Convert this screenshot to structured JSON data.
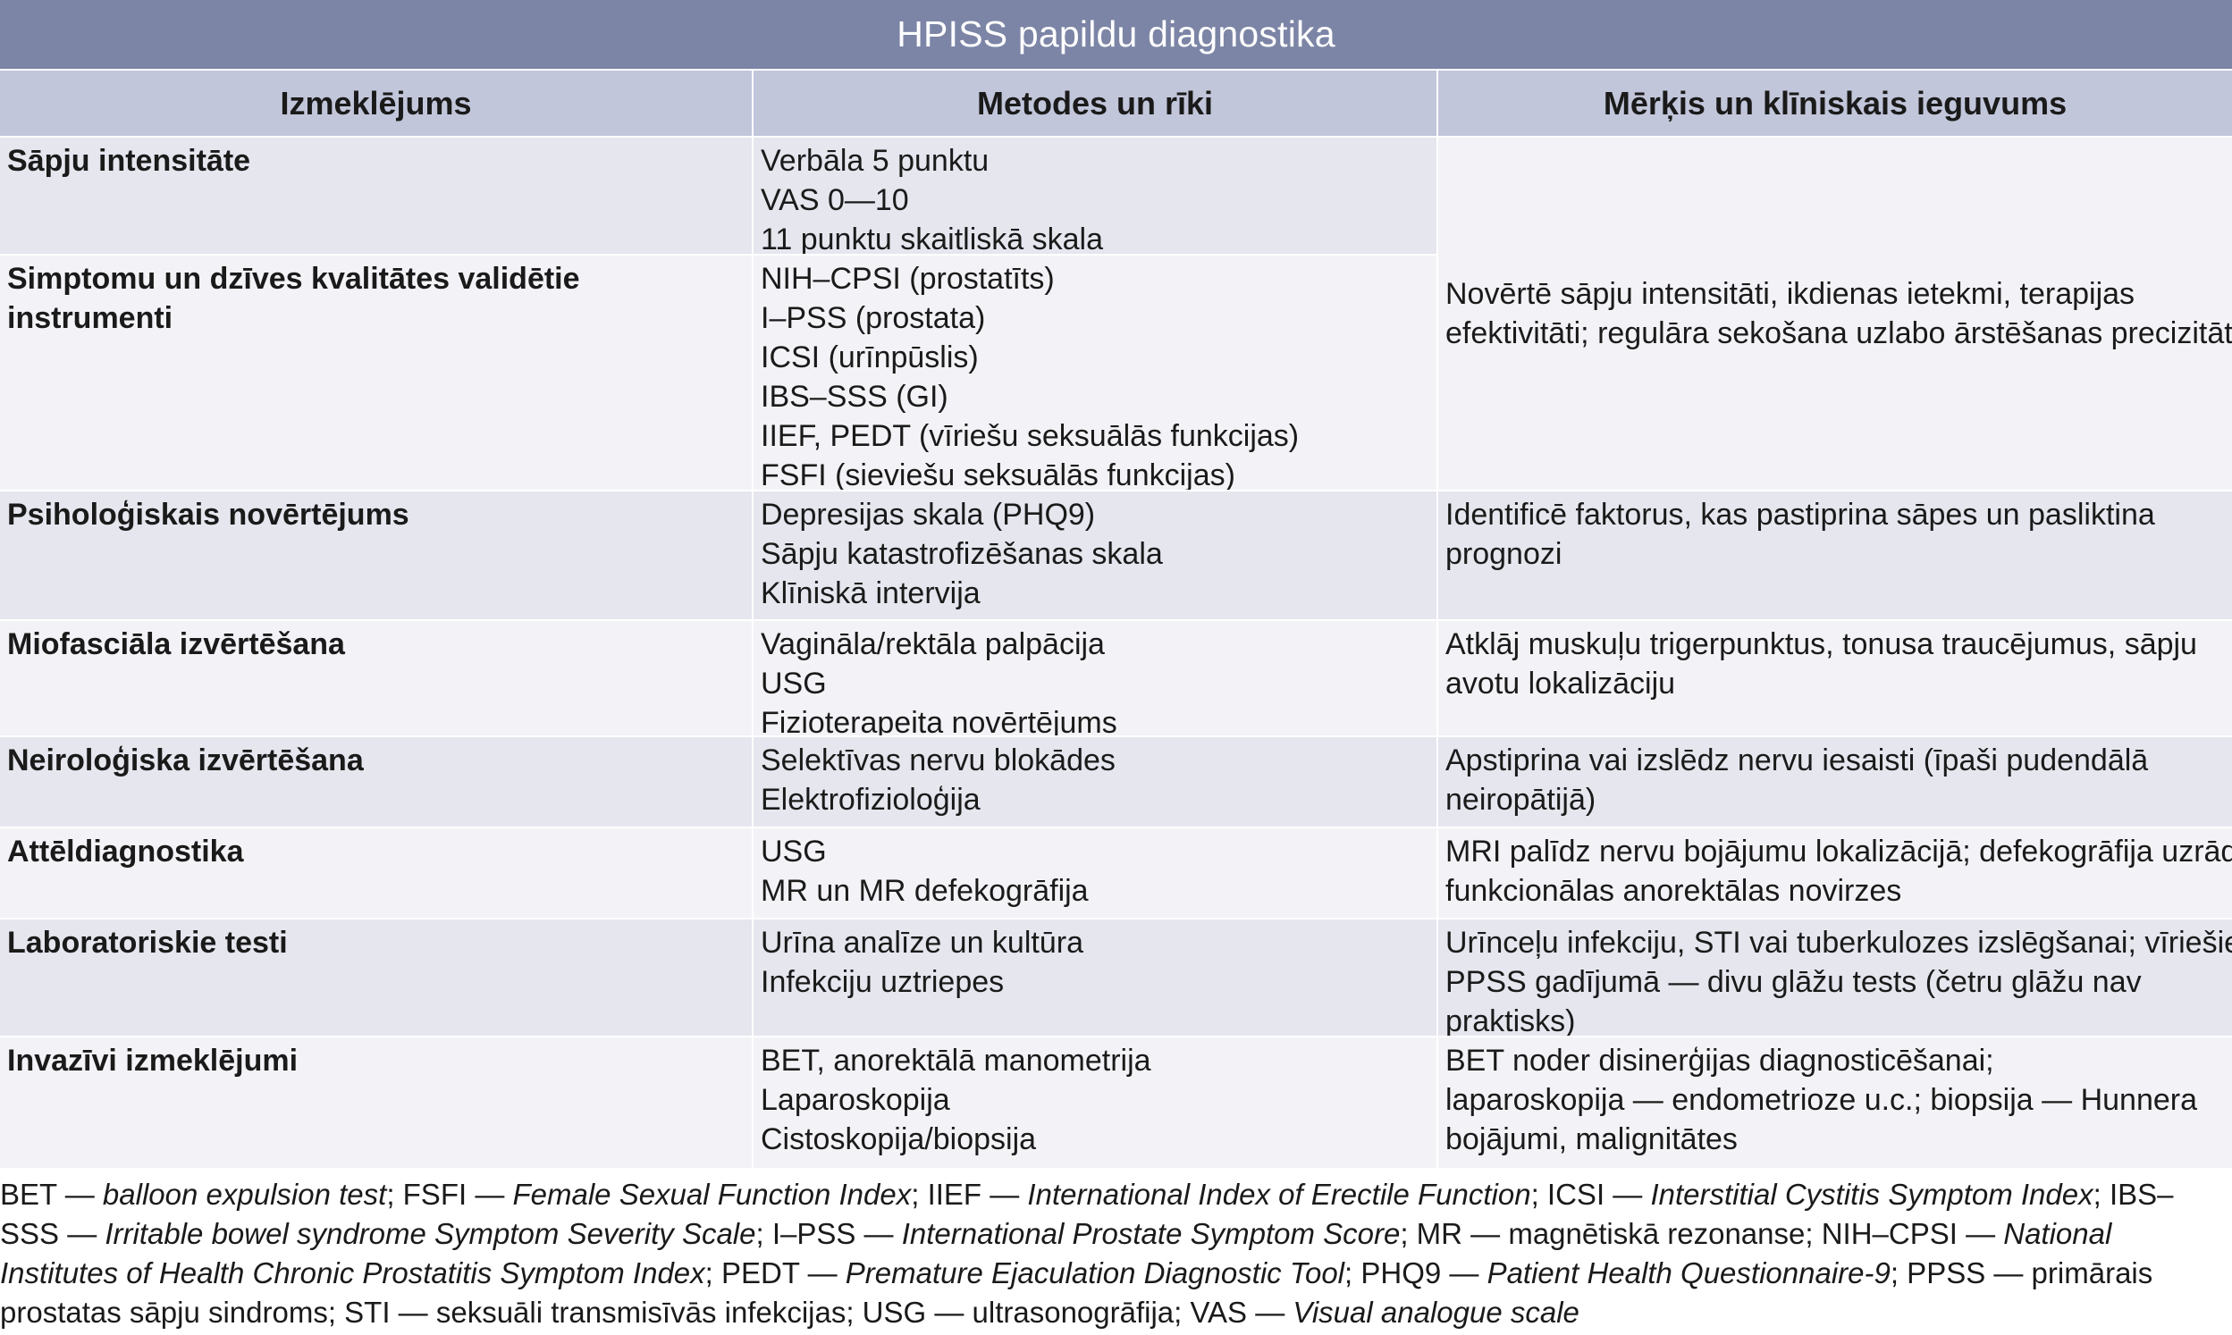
{
  "title": "HPISS papildu diagnostika",
  "headers": [
    "Izmeklējums",
    "Metodes un rīki",
    "Mērķis un klīniskais ieguvums"
  ],
  "rows": [
    {
      "exam": "Sāpju intensitāte",
      "methods": [
        "Verbāla 5 punktu",
        "VAS 0—10",
        "11 punktu skaitliskā skala"
      ],
      "goal": [
        "Novērtē sāpju intensitāti, ikdienas ietekmi, terapijas",
        "efektivitāti; regulāra sekošana uzlabo ārstēšanas precizitāti"
      ]
    },
    {
      "exam": "Simptomu un dzīves kvalitātes validētie instrumenti",
      "methods": [
        "NIH–CPSI (prostatīts)",
        "I–PSS (prostata)",
        "ICSI (urīnpūslis)",
        "IBS–SSS (GI)",
        "IIEF, PEDT (vīriešu seksuālās funkcijas)",
        "FSFI (sieviešu seksuālās funkcijas)"
      ],
      "goal": []
    },
    {
      "exam": "Psiholoģiskais novērtējums",
      "methods": [
        "Depresijas skala (PHQ9)",
        "Sāpju katastrofizēšanas skala",
        "Klīniskā intervija"
      ],
      "goal": [
        "Identificē faktorus, kas pastiprina sāpes un pasliktina",
        "prognozi"
      ]
    },
    {
      "exam": "Miofasciāla izvērtēšana",
      "methods": [
        "Vagināla/rektāla palpācija",
        "USG",
        "Fizioterapeita novērtējums"
      ],
      "goal": [
        "Atklāj muskuļu trigerpunktus, tonusa traucējumus, sāpju",
        "avotu lokalizāciju"
      ]
    },
    {
      "exam": "Neiroloģiska izvērtēšana",
      "methods": [
        "Selektīvas nervu blokādes",
        "Elektrofizioloģija"
      ],
      "goal": [
        "Apstiprina vai izslēdz nervu iesaisti (īpaši pudendālā",
        "neiropātijā)"
      ]
    },
    {
      "exam": "Attēldiagnostika",
      "methods": [
        "USG",
        "MR un MR defekogrāfija"
      ],
      "goal": [
        "MRI palīdz nervu bojājumu lokalizācijā; defekogrāfija uzrāda",
        "funkcionālas anorektālas novirzes"
      ]
    },
    {
      "exam": "Laboratoriskie testi",
      "methods": [
        "Urīna analīze un kultūra",
        "Infekciju uztriepes"
      ],
      "goal": [
        "Urīnceļu infekciju, STI vai tuberkulozes izslēgšanai; vīriešiem",
        "PPSS gadījumā — divu glāžu tests (četru glāžu nav",
        "praktisks)"
      ]
    },
    {
      "exam": "Invazīvi izmeklējumi",
      "methods": [
        "BET, anorektālā manometrija",
        "Laparoskopija",
        "Cistoskopija/biopsija"
      ],
      "goal": [
        "BET noder disinerģijas diagnosticēšanai;",
        "laparoskopija — endometrioze u.c.; biopsija — Hunnera",
        "bojājumi, malignitātes"
      ]
    }
  ],
  "footnote": [
    {
      "t": "BET — ",
      "i": false
    },
    {
      "t": "balloon expulsion test",
      "i": true
    },
    {
      "t": "; FSFI — ",
      "i": false
    },
    {
      "t": "Female Sexual Function Index",
      "i": true
    },
    {
      "t": "; IIEF — ",
      "i": false
    },
    {
      "t": "International Index of Erectile Function",
      "i": true
    },
    {
      "t": "; ICSI — ",
      "i": false
    },
    {
      "t": "Interstitial Cystitis Symptom Index",
      "i": true
    },
    {
      "t": "; IBS–SSS — ",
      "i": false
    },
    {
      "t": "Irritable bowel syndrome Symptom Severity Scale",
      "i": true
    },
    {
      "t": "; I–PSS — ",
      "i": false
    },
    {
      "t": "International Prostate Symptom Score",
      "i": true
    },
    {
      "t": "; MR — magnētiskā rezonanse; NIH–CPSI — ",
      "i": false
    },
    {
      "t": "National Institutes of Health Chronic Prostatitis Symptom Index",
      "i": true
    },
    {
      "t": "; PEDT — ",
      "i": false
    },
    {
      "t": "Premature Ejaculation Diagnostic Tool",
      "i": true
    },
    {
      "t": "; PHQ9 — ",
      "i": false
    },
    {
      "t": "Patient Health Questionnaire-9",
      "i": true
    },
    {
      "t": "; PPSS — primārais prostatas sāpju sindroms; STI — seksuāli transmisīvās infekcijas; USG — ultrasonogrāfija; VAS — ",
      "i": false
    },
    {
      "t": "Visual analogue scale",
      "i": true
    }
  ]
}
